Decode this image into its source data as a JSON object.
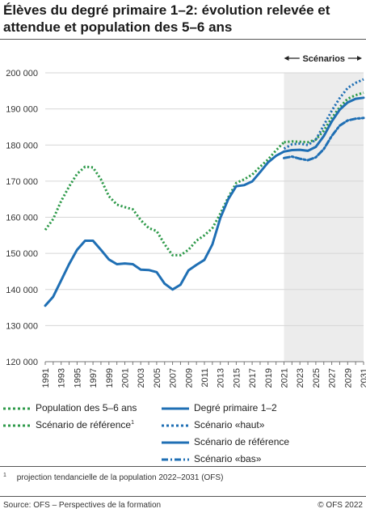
{
  "title": "Élèves du degré primaire 1–2: évolution relevée et attendue et population des 5–6 ans",
  "scenario_band_label": "Scénarios",
  "legend": [
    {
      "label": "Population des 5–6 ans",
      "sup": "",
      "style": "dotted",
      "color": "#2e9a4a"
    },
    {
      "label": "Degré primaire 1–2",
      "sup": "",
      "style": "solid",
      "color": "#1f6fb4"
    },
    {
      "label": "Scénario de référence",
      "sup": "1",
      "style": "dotted",
      "color": "#2e9a4a"
    },
    {
      "label": "Scénario «haut»",
      "sup": "",
      "style": "dotted",
      "color": "#1f6fb4"
    },
    {
      "label": "Scénario de référence",
      "sup": "",
      "style": "solid",
      "color": "#1f6fb4"
    },
    {
      "label": "Scénario «bas»",
      "sup": "",
      "style": "dashdot",
      "color": "#1f6fb4"
    }
  ],
  "footnote": {
    "mark": "1",
    "text": "projection tendancielle de la population 2022–2031 (OFS)"
  },
  "source": "Source: OFS – Perspectives de la formation",
  "copyright": "© OFS 2022",
  "colors": {
    "blue": "#1f6fb4",
    "green": "#2e9a4a",
    "band": "#ececec",
    "grid": "#d6d6d6"
  },
  "chart_data": {
    "type": "line",
    "xlim": [
      1991,
      2031
    ],
    "ylim": [
      120000,
      200000
    ],
    "ytick_labels": [
      "120 000",
      "130 000",
      "140 000",
      "150 000",
      "160 000",
      "170 000",
      "180 000",
      "190 000",
      "200 000"
    ],
    "yticks": [
      120000,
      130000,
      140000,
      150000,
      160000,
      170000,
      180000,
      190000,
      200000
    ],
    "xticks": [
      1991,
      1993,
      1995,
      1997,
      1999,
      2001,
      2003,
      2005,
      2007,
      2009,
      2011,
      2013,
      2015,
      2017,
      2019,
      2021,
      2023,
      2025,
      2027,
      2029,
      2031
    ],
    "scenario_range": [
      2021,
      2031
    ],
    "grid": true,
    "series": [
      {
        "name": "Population des 5–6 ans",
        "style": "dotted",
        "color": "#2e9a4a",
        "x": [
          1991,
          1992,
          1993,
          1994,
          1995,
          1996,
          1997,
          1998,
          1999,
          2000,
          2001,
          2002,
          2003,
          2004,
          2005,
          2006,
          2007,
          2008,
          2009,
          2010,
          2011,
          2012,
          2013,
          2014,
          2015,
          2016,
          2017,
          2018,
          2019,
          2020,
          2021
        ],
        "y": [
          156500,
          159500,
          164500,
          168500,
          172000,
          174000,
          173800,
          170500,
          165800,
          163500,
          162800,
          162200,
          159200,
          157000,
          156200,
          152500,
          149500,
          149500,
          151000,
          153500,
          155000,
          157000,
          161000,
          165500,
          169500,
          170500,
          171800,
          174000,
          176000,
          178500,
          180800
        ]
      },
      {
        "name": "Degré primaire 1–2",
        "style": "solid",
        "color": "#1f6fb4",
        "x": [
          1991,
          1992,
          1993,
          1994,
          1995,
          1996,
          1997,
          1998,
          1999,
          2000,
          2001,
          2002,
          2003,
          2004,
          2005,
          2006,
          2007,
          2008,
          2009,
          2010,
          2011,
          2012,
          2013,
          2014,
          2015,
          2016,
          2017,
          2018,
          2019,
          2020,
          2021
        ],
        "y": [
          135500,
          138000,
          142500,
          147000,
          151000,
          153500,
          153500,
          151000,
          148300,
          147000,
          147200,
          147000,
          145500,
          145400,
          144800,
          141600,
          140000,
          141300,
          145300,
          146800,
          148200,
          152500,
          159800,
          165000,
          168600,
          168900,
          169900,
          172500,
          175200,
          177000,
          178200
        ]
      },
      {
        "name": "Scénario de référence",
        "style": "dotted",
        "color": "#2e9a4a",
        "x": [
          2021,
          2022,
          2023,
          2024,
          2025,
          2026,
          2027,
          2028,
          2029,
          2030,
          2031
        ],
        "y": [
          180800,
          181000,
          180900,
          180800,
          181500,
          184000,
          187500,
          190500,
          192800,
          193800,
          194500
        ]
      },
      {
        "name": "Scénario «haut»",
        "style": "dotted",
        "color": "#1f6fb4",
        "x": [
          2021,
          2022,
          2023,
          2024,
          2025,
          2026,
          2027,
          2028,
          2029,
          2030,
          2031
        ],
        "y": [
          179000,
          180200,
          180400,
          180000,
          181500,
          185500,
          189500,
          193000,
          195800,
          197200,
          198200
        ]
      },
      {
        "name": "Scénario de référence",
        "style": "solid",
        "color": "#1f6fb4",
        "x": [
          2021,
          2022,
          2023,
          2024,
          2025,
          2026,
          2027,
          2028,
          2029,
          2030,
          2031
        ],
        "y": [
          178200,
          178600,
          178700,
          178400,
          179500,
          182500,
          186500,
          189800,
          191800,
          192800,
          193100
        ]
      },
      {
        "name": "Scénario «bas»",
        "style": "dashdot",
        "color": "#1f6fb4",
        "x": [
          2021,
          2022,
          2023,
          2024,
          2025,
          2026,
          2027,
          2028,
          2029,
          2030,
          2031
        ],
        "y": [
          176400,
          176800,
          176200,
          175800,
          176600,
          178900,
          182500,
          185400,
          186800,
          187300,
          187500
        ]
      }
    ]
  }
}
